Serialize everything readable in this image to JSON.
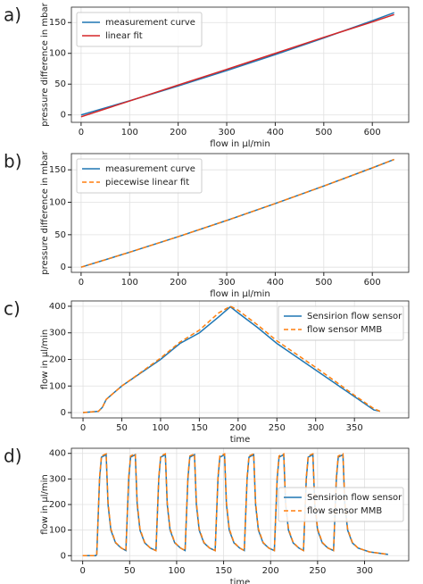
{
  "chart_data": [
    {
      "type": "line",
      "panel_label": "a)",
      "xlabel": "flow in µl/min",
      "ylabel": "pressure difference in mbar",
      "x": [
        0,
        100,
        200,
        300,
        400,
        500,
        600,
        645
      ],
      "series": [
        {
          "name": "measurement curve",
          "color": "#1f77b4",
          "linestyle": "solid",
          "values": [
            0,
            23,
            47,
            72,
            98,
            125,
            153,
            166
          ]
        },
        {
          "name": "linear fit",
          "color": "#d62728",
          "linestyle": "solid",
          "values": [
            -3,
            22.7,
            48.5,
            74,
            100,
            126,
            151,
            163
          ]
        }
      ],
      "xlim": [
        -20,
        675
      ],
      "ylim": [
        -12,
        175
      ],
      "xticks": [
        0,
        100,
        200,
        300,
        400,
        500,
        600
      ],
      "yticks": [
        0,
        50,
        100,
        150
      ],
      "grid": true,
      "legend": "upper left"
    },
    {
      "type": "line",
      "panel_label": "b)",
      "xlabel": "flow in µl/min",
      "ylabel": "pressure difference in mbar",
      "x": [
        0,
        100,
        200,
        300,
        400,
        500,
        600,
        645
      ],
      "series": [
        {
          "name": "measurement curve",
          "color": "#1f77b4",
          "linestyle": "solid",
          "values": [
            0,
            23,
            47,
            72,
            98,
            125,
            153,
            166
          ]
        },
        {
          "name": "piecewise linear fit",
          "color": "#ff7f0e",
          "linestyle": "dashed",
          "values": [
            0,
            23,
            47,
            72,
            98,
            125,
            153,
            166
          ]
        }
      ],
      "xlim": [
        -20,
        675
      ],
      "ylim": [
        -8,
        175
      ],
      "xticks": [
        0,
        100,
        200,
        300,
        400,
        500,
        600
      ],
      "yticks": [
        0,
        50,
        100,
        150
      ],
      "grid": true,
      "legend": "upper left"
    },
    {
      "type": "line",
      "panel_label": "c)",
      "xlabel": "time",
      "ylabel": "flow in µl/min",
      "x": [
        0,
        20,
        25,
        30,
        40,
        50,
        75,
        100,
        125,
        150,
        175,
        190,
        200,
        225,
        250,
        275,
        300,
        325,
        350,
        375,
        383
      ],
      "series": [
        {
          "name": "Sensirion flow sensor",
          "color": "#1f77b4",
          "linestyle": "solid",
          "values": [
            0,
            5,
            20,
            50,
            75,
            100,
            150,
            200,
            260,
            300,
            360,
            398,
            375,
            320,
            260,
            210,
            160,
            110,
            60,
            10,
            5
          ]
        },
        {
          "name": "flow sensor MMB",
          "color": "#ff7f0e",
          "linestyle": "dashed",
          "values": [
            0,
            5,
            20,
            50,
            75,
            100,
            152,
            205,
            265,
            310,
            375,
            400,
            385,
            330,
            270,
            220,
            170,
            118,
            65,
            15,
            5
          ]
        }
      ],
      "xlim": [
        -15,
        420
      ],
      "ylim": [
        -20,
        420
      ],
      "xticks": [
        0,
        50,
        100,
        150,
        200,
        250,
        300,
        350
      ],
      "yticks": [
        0,
        100,
        200,
        300,
        400
      ],
      "grid": true,
      "legend": "upper right"
    },
    {
      "type": "line",
      "panel_label": "d)",
      "xlabel": "time",
      "ylabel": "flow in µl/min",
      "x": [
        0,
        14,
        15,
        18,
        20,
        25,
        27,
        30,
        35,
        41,
        46,
        49,
        51,
        56,
        58,
        61,
        66,
        72,
        78,
        81,
        83,
        88,
        90,
        93,
        98,
        104,
        109,
        112,
        114,
        119,
        121,
        124,
        129,
        135,
        141,
        144,
        146,
        151,
        153,
        156,
        161,
        167,
        172,
        175,
        177,
        182,
        184,
        187,
        192,
        198,
        204,
        207,
        209,
        214,
        216,
        219,
        224,
        230,
        235,
        238,
        240,
        245,
        247,
        250,
        255,
        261,
        267,
        270,
        272,
        277,
        279,
        282,
        287,
        293,
        305,
        325
      ],
      "series": [
        {
          "name": "Sensirion flow sensor",
          "color": "#1f77b4",
          "linestyle": "solid",
          "values": [
            0,
            0,
            5,
            300,
            385,
            395,
            200,
            100,
            50,
            30,
            20,
            300,
            385,
            395,
            200,
            100,
            50,
            30,
            20,
            300,
            385,
            395,
            200,
            100,
            50,
            30,
            20,
            300,
            385,
            395,
            200,
            100,
            50,
            30,
            20,
            300,
            385,
            395,
            200,
            100,
            50,
            30,
            20,
            300,
            385,
            395,
            200,
            100,
            50,
            30,
            20,
            300,
            385,
            395,
            200,
            100,
            50,
            30,
            20,
            300,
            385,
            395,
            200,
            100,
            50,
            30,
            20,
            300,
            385,
            395,
            200,
            100,
            50,
            30,
            15,
            5
          ]
        },
        {
          "name": "flow sensor MMB",
          "color": "#ff7f0e",
          "linestyle": "dashed",
          "values": [
            0,
            0,
            5,
            310,
            390,
            398,
            210,
            105,
            52,
            30,
            20,
            310,
            390,
            398,
            210,
            105,
            52,
            30,
            20,
            310,
            390,
            398,
            210,
            105,
            52,
            30,
            20,
            310,
            390,
            398,
            210,
            105,
            52,
            30,
            20,
            310,
            390,
            398,
            210,
            105,
            52,
            30,
            20,
            310,
            390,
            398,
            210,
            105,
            52,
            30,
            20,
            310,
            390,
            398,
            210,
            105,
            52,
            30,
            20,
            310,
            390,
            398,
            210,
            105,
            52,
            30,
            20,
            310,
            390,
            398,
            210,
            105,
            52,
            30,
            15,
            5
          ]
        }
      ],
      "xlim": [
        -12,
        347
      ],
      "ylim": [
        -20,
        420
      ],
      "xticks": [
        0,
        50,
        100,
        150,
        200,
        250,
        300
      ],
      "yticks": [
        0,
        100,
        200,
        300,
        400
      ],
      "grid": true,
      "legend": "center right"
    }
  ]
}
